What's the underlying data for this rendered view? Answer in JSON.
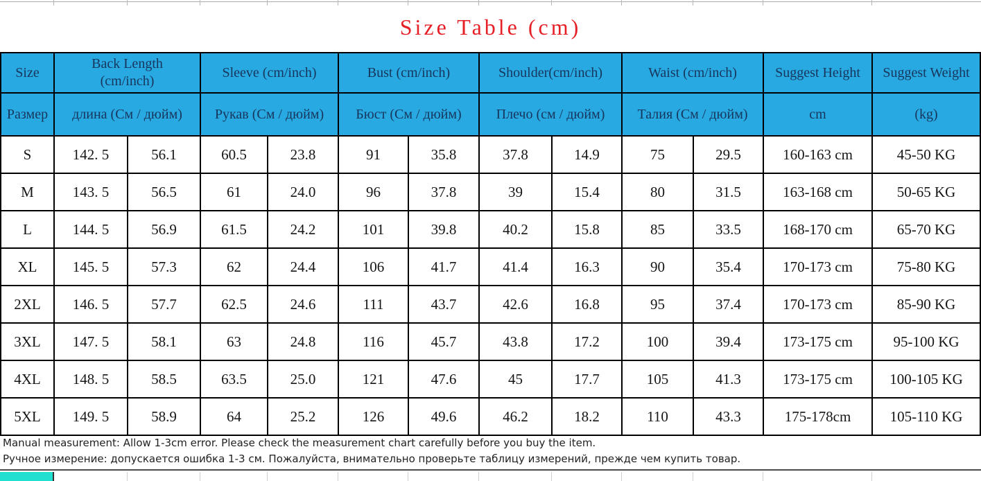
{
  "title": {
    "text": "Size Table (cm)"
  },
  "colors": {
    "title_red": "#e61e25",
    "header_blue": "#29a9e1",
    "header_text_navy": "#17365d",
    "selected_cell_cyan": "#21e0cf"
  },
  "size_table": {
    "header_row1": [
      {
        "key": "size",
        "label": "Size",
        "span": 1
      },
      {
        "key": "back-length",
        "label": "Back Length\n(cm/inch)",
        "span": 2
      },
      {
        "key": "sleeve",
        "label": "Sleeve (cm/inch)",
        "span": 2
      },
      {
        "key": "bust",
        "label": "Bust (cm/inch)",
        "span": 2
      },
      {
        "key": "shoulder",
        "label": "Shoulder(cm/inch)",
        "span": 2
      },
      {
        "key": "waist",
        "label": "Waist (cm/inch)",
        "span": 2
      },
      {
        "key": "suggest-height",
        "label": "Suggest Height",
        "span": 1
      },
      {
        "key": "suggest-weight",
        "label": "Suggest Weight",
        "span": 1
      }
    ],
    "header_row2": [
      {
        "key": "size-ru",
        "label": "Размер",
        "span": 1
      },
      {
        "key": "length-ru",
        "label": "длина (См / дюйм)",
        "span": 2
      },
      {
        "key": "sleeve-ru",
        "label": "Рукав (См / дюйм)",
        "span": 2
      },
      {
        "key": "bust-ru",
        "label": "Бюст (См / дюйм)",
        "span": 2
      },
      {
        "key": "shoulder-ru",
        "label": "Плечо (см / дюйм)",
        "span": 2
      },
      {
        "key": "waist-ru",
        "label": "Талия (См / дюйм)",
        "span": 2
      },
      {
        "key": "height-unit",
        "label": "cm",
        "span": 1
      },
      {
        "key": "weight-unit",
        "label": "(kg)",
        "span": 1
      }
    ],
    "rows": [
      {
        "size": "S",
        "values": [
          "142. 5",
          "56.1",
          "60.5",
          "23.8",
          "91",
          "35.8",
          "37.8",
          "14.9",
          "75",
          "29.5",
          "160-163 cm",
          "45-50 KG"
        ]
      },
      {
        "size": "M",
        "values": [
          "143. 5",
          "56.5",
          "61",
          "24.0",
          "96",
          "37.8",
          "39",
          "15.4",
          "80",
          "31.5",
          "163-168 cm",
          "50-65 KG"
        ]
      },
      {
        "size": "L",
        "values": [
          "144. 5",
          "56.9",
          "61.5",
          "24.2",
          "101",
          "39.8",
          "40.2",
          "15.8",
          "85",
          "33.5",
          "168-170 cm",
          "65-70 KG"
        ]
      },
      {
        "size": "XL",
        "values": [
          "145. 5",
          "57.3",
          "62",
          "24.4",
          "106",
          "41.7",
          "41.4",
          "16.3",
          "90",
          "35.4",
          "170-173 cm",
          "75-80 KG"
        ]
      },
      {
        "size": "2XL",
        "values": [
          "146. 5",
          "57.7",
          "62.5",
          "24.6",
          "111",
          "43.7",
          "42.6",
          "16.8",
          "95",
          "37.4",
          "170-173 cm",
          "85-90 KG"
        ]
      },
      {
        "size": "3XL",
        "values": [
          "147. 5",
          "58.1",
          "63",
          "24.8",
          "116",
          "45.7",
          "43.8",
          "17.2",
          "100",
          "39.4",
          "173-175 cm",
          "95-100 KG"
        ]
      },
      {
        "size": "4XL",
        "values": [
          "148. 5",
          "58.5",
          "63.5",
          "25.0",
          "121",
          "47.6",
          "45",
          "17.7",
          "105",
          "41.3",
          "173-175 cm",
          "100-105 KG"
        ]
      },
      {
        "size": "5XL",
        "values": [
          "149. 5",
          "58.9",
          "64",
          "25.2",
          "126",
          "49.6",
          "46.2",
          "18.2",
          "110",
          "43.3",
          "175-178cm",
          "105-110 KG"
        ]
      }
    ]
  },
  "notes": {
    "en": "Manual measurement: Allow 1-3cm error. Please check the measurement chart carefully before you buy the item.",
    "ru": "Ручное измерение: допускается ошибка 1-3 см. Пожалуйста, внимательно проверьте таблицу измерений, прежде чем купить товар."
  }
}
